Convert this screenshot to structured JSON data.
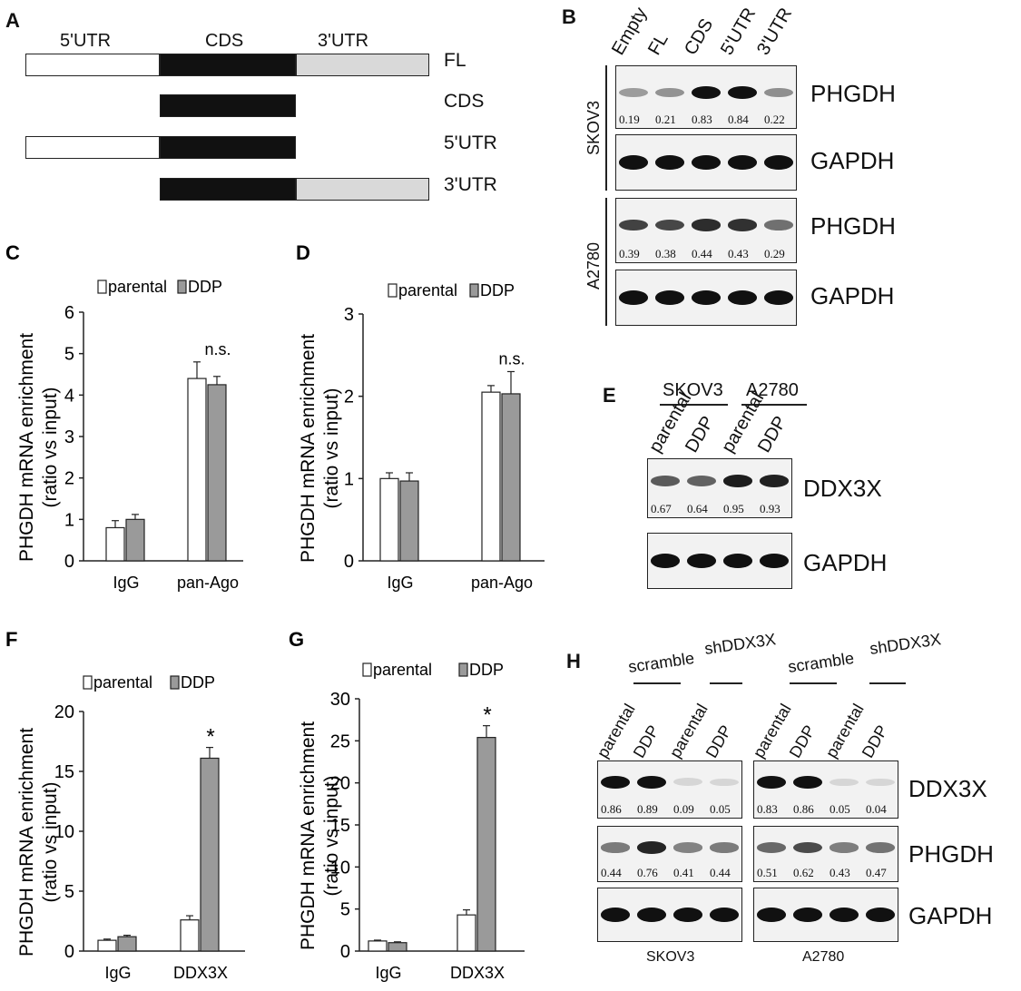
{
  "panels": {
    "A": {
      "letter": "A",
      "headers": [
        "5'UTR",
        "CDS",
        "3'UTR"
      ],
      "constructs": [
        {
          "label": "FL",
          "segments": [
            "5utr",
            "cds",
            "3utr"
          ]
        },
        {
          "label": "CDS",
          "segments": [
            "cds"
          ]
        },
        {
          "label": "5'UTR",
          "segments": [
            "5utr",
            "cds"
          ]
        },
        {
          "label": "3'UTR",
          "segments": [
            "cds",
            "3utr"
          ]
        }
      ]
    },
    "B": {
      "letter": "B",
      "lanes": [
        "Empty",
        "FL",
        "CDS",
        "5'UTR",
        "3'UTR"
      ],
      "groups": [
        {
          "cell_line": "SKOV3",
          "phgdh_label": "PHGDH",
          "phgdh_values": [
            "0.19",
            "0.21",
            "0.83",
            "0.84",
            "0.22"
          ],
          "gapdh_label": "GAPDH"
        },
        {
          "cell_line": "A2780",
          "phgdh_label": "PHGDH",
          "phgdh_values": [
            "0.39",
            "0.38",
            "0.44",
            "0.43",
            "0.29"
          ],
          "gapdh_label": "GAPDH"
        }
      ]
    },
    "E": {
      "letter": "E",
      "groups": [
        "SKOV3",
        "A2780"
      ],
      "lanes": [
        "parental",
        "DDP",
        "parental",
        "DDP"
      ],
      "blots": [
        {
          "label": "DDX3X",
          "values": [
            "0.67",
            "0.64",
            "0.95",
            "0.93"
          ]
        },
        {
          "label": "GAPDH",
          "values": []
        }
      ]
    },
    "H": {
      "letter": "H",
      "conditions": [
        "scramble",
        "shDDX3X",
        "scramble",
        "shDDX3X"
      ],
      "lanes": [
        "parental",
        "DDP",
        "parental",
        "DDP",
        "parental",
        "DDP",
        "parental",
        "DDP"
      ],
      "cell_lines": [
        "SKOV3",
        "A2780"
      ],
      "blots": [
        {
          "label": "DDX3X",
          "skov3": [
            "0.86",
            "0.89",
            "0.09",
            "0.05"
          ],
          "a2780": [
            "0.83",
            "0.86",
            "0.05",
            "0.04"
          ]
        },
        {
          "label": "PHGDH",
          "skov3": [
            "0.44",
            "0.76",
            "0.41",
            "0.44"
          ],
          "a2780": [
            "0.51",
            "0.62",
            "0.43",
            "0.47"
          ]
        },
        {
          "label": "GAPDH",
          "skov3": [],
          "a2780": []
        }
      ]
    }
  },
  "chart_data": [
    {
      "panel": "C",
      "type": "bar",
      "categories": [
        "IgG",
        "pan-Ago"
      ],
      "series": [
        {
          "name": "parental",
          "values": [
            0.8,
            4.4
          ],
          "errors": [
            0.17,
            0.4
          ],
          "color": "#ffffff"
        },
        {
          "name": "DDP",
          "values": [
            1.0,
            4.25
          ],
          "errors": [
            0.12,
            0.2
          ],
          "color": "#9a9a9a"
        }
      ],
      "ylabel": "PHGDH mRNA enrichment (ratio vs input)",
      "ylim": [
        0,
        6
      ],
      "yticks": [
        "0",
        "1",
        "2",
        "3",
        "4",
        "5",
        "6"
      ],
      "annotations": [
        {
          "category": "pan-Ago",
          "text": "n.s."
        }
      ],
      "legend_placement": "top"
    },
    {
      "panel": "D",
      "type": "bar",
      "categories": [
        "IgG",
        "pan-Ago"
      ],
      "series": [
        {
          "name": "parental",
          "values": [
            1.0,
            2.05
          ],
          "errors": [
            0.07,
            0.08
          ],
          "color": "#ffffff"
        },
        {
          "name": "DDP",
          "values": [
            0.97,
            2.03
          ],
          "errors": [
            0.1,
            0.27
          ],
          "color": "#9a9a9a"
        }
      ],
      "ylabel": "PHGDH mRNA enrichment (ratio vs input)",
      "ylim": [
        0,
        3
      ],
      "yticks": [
        "0",
        "1",
        "2",
        "3"
      ],
      "annotations": [
        {
          "category": "pan-Ago",
          "text": "n.s."
        }
      ],
      "legend_placement": "top"
    },
    {
      "panel": "F",
      "type": "bar",
      "categories": [
        "IgG",
        "DDX3X"
      ],
      "series": [
        {
          "name": "parental",
          "values": [
            0.9,
            2.6
          ],
          "errors": [
            0.1,
            0.35
          ],
          "color": "#ffffff"
        },
        {
          "name": "DDP",
          "values": [
            1.2,
            16.1
          ],
          "errors": [
            0.12,
            0.9
          ],
          "color": "#9a9a9a"
        }
      ],
      "ylabel": "PHGDH mRNA enrichment (ratio vs input)",
      "ylim": [
        0,
        20
      ],
      "yticks": [
        "0",
        "5",
        "10",
        "15",
        "20"
      ],
      "annotations": [
        {
          "category": "DDX3X",
          "text": "*"
        }
      ],
      "legend_placement": "top"
    },
    {
      "panel": "G",
      "type": "bar",
      "categories": [
        "IgG",
        "DDX3X"
      ],
      "series": [
        {
          "name": "parental",
          "values": [
            1.2,
            4.3
          ],
          "errors": [
            0.1,
            0.6
          ],
          "color": "#ffffff"
        },
        {
          "name": "DDP",
          "values": [
            1.0,
            25.4
          ],
          "errors": [
            0.1,
            1.4
          ],
          "color": "#9a9a9a"
        }
      ],
      "ylabel": "PHGDH mRNA enrichment (ratio vs input)",
      "ylim": [
        0,
        30
      ],
      "yticks": [
        "0",
        "5",
        "10",
        "15",
        "20",
        "25",
        "30"
      ],
      "annotations": [
        {
          "category": "DDX3X",
          "text": "*"
        }
      ],
      "legend_placement": "top"
    }
  ],
  "colors": {
    "cds": "#111111",
    "utr5": "#ffffff",
    "utr3": "#d9d9d9",
    "ddp_bar": "#9a9a9a",
    "band": "#1a1a1a"
  }
}
